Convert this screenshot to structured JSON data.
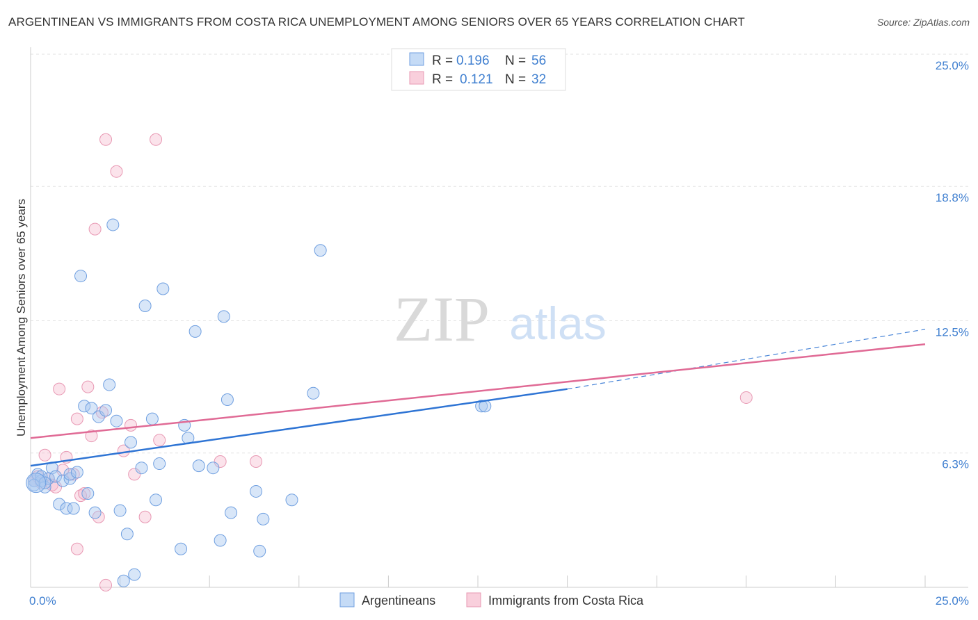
{
  "title": "ARGENTINEAN VS IMMIGRANTS FROM COSTA RICA UNEMPLOYMENT AMONG SENIORS OVER 65 YEARS CORRELATION CHART",
  "source": "Source: ZipAtlas.com",
  "watermark": {
    "zip": "ZIP",
    "atlas": "atlas"
  },
  "colors": {
    "blue": "#4a86d8",
    "blue_fill": "#a9c8f0",
    "pink": "#e8709a",
    "pink_fill": "#f5b8cc",
    "tick": "#3f7fd0"
  },
  "legend": {
    "rows": [
      {
        "r_label": "R =",
        "r_value": "0.196",
        "n_label": "N =",
        "n_value": "56"
      },
      {
        "r_label": "R =",
        "r_value": "0.121",
        "n_label": "N =",
        "n_value": "32"
      }
    ]
  },
  "chart_data": {
    "type": "scatter",
    "xlabel": "",
    "ylabel": "Unemployment Among Seniors over 65 years",
    "xlim": [
      0,
      25
    ],
    "ylim": [
      0,
      25
    ],
    "x_tick_labels": {
      "left": "0.0%",
      "right": "25.0%"
    },
    "y_ticks": [
      {
        "value": 6.3,
        "label": "6.3%"
      },
      {
        "value": 12.5,
        "label": "12.5%"
      },
      {
        "value": 18.8,
        "label": "18.8%"
      },
      {
        "value": 25.0,
        "label": "25.0%"
      }
    ],
    "series": [
      {
        "name": "Argentineans",
        "color": "blue",
        "points": [
          [
            0.1,
            5.0
          ],
          [
            0.1,
            4.8
          ],
          [
            0.2,
            5.3
          ],
          [
            0.3,
            5.0
          ],
          [
            0.4,
            4.7
          ],
          [
            0.5,
            5.1
          ],
          [
            0.6,
            5.6
          ],
          [
            0.7,
            5.2
          ],
          [
            0.8,
            3.9
          ],
          [
            0.9,
            5.0
          ],
          [
            1.0,
            3.7
          ],
          [
            1.1,
            5.1
          ],
          [
            1.1,
            5.3
          ],
          [
            1.2,
            3.7
          ],
          [
            1.3,
            5.4
          ],
          [
            1.4,
            14.6
          ],
          [
            1.5,
            8.5
          ],
          [
            1.6,
            4.4
          ],
          [
            1.7,
            8.4
          ],
          [
            1.8,
            3.5
          ],
          [
            1.9,
            8.0
          ],
          [
            2.1,
            8.3
          ],
          [
            2.2,
            9.5
          ],
          [
            2.3,
            17.0
          ],
          [
            2.4,
            7.8
          ],
          [
            2.5,
            3.6
          ],
          [
            2.6,
            0.3
          ],
          [
            2.7,
            2.5
          ],
          [
            2.8,
            6.8
          ],
          [
            2.9,
            0.6
          ],
          [
            3.1,
            5.6
          ],
          [
            3.2,
            13.2
          ],
          [
            3.4,
            7.9
          ],
          [
            3.5,
            4.1
          ],
          [
            3.6,
            5.8
          ],
          [
            3.7,
            14.0
          ],
          [
            4.2,
            1.8
          ],
          [
            4.3,
            7.6
          ],
          [
            4.4,
            7.0
          ],
          [
            4.6,
            12.0
          ],
          [
            4.7,
            5.7
          ],
          [
            5.1,
            5.6
          ],
          [
            5.3,
            2.2
          ],
          [
            5.4,
            12.7
          ],
          [
            5.5,
            8.8
          ],
          [
            5.6,
            3.5
          ],
          [
            6.3,
            4.5
          ],
          [
            6.4,
            1.7
          ],
          [
            6.5,
            3.2
          ],
          [
            7.3,
            4.1
          ],
          [
            7.9,
            9.1
          ],
          [
            8.1,
            15.8
          ],
          [
            12.6,
            8.5
          ],
          [
            12.7,
            8.5
          ],
          [
            0.3,
            5.2
          ],
          [
            0.4,
            4.9
          ]
        ],
        "trendline": {
          "x_start": 0,
          "y_start": 5.7,
          "x_solid_end": 15,
          "y_solid_end": 9.3,
          "x_end": 25,
          "y_end": 12.1
        }
      },
      {
        "name": "Immigrants from Costa Rica",
        "color": "pink",
        "points": [
          [
            0.1,
            5.0
          ],
          [
            0.2,
            5.2
          ],
          [
            0.3,
            4.9
          ],
          [
            0.4,
            6.2
          ],
          [
            0.5,
            5.1
          ],
          [
            0.6,
            4.8
          ],
          [
            0.7,
            4.7
          ],
          [
            0.8,
            9.3
          ],
          [
            0.9,
            5.5
          ],
          [
            1.0,
            6.1
          ],
          [
            1.2,
            5.3
          ],
          [
            1.3,
            1.8
          ],
          [
            1.3,
            7.9
          ],
          [
            1.4,
            4.3
          ],
          [
            1.5,
            4.4
          ],
          [
            1.6,
            9.4
          ],
          [
            1.7,
            7.1
          ],
          [
            1.8,
            16.8
          ],
          [
            1.9,
            3.3
          ],
          [
            2.0,
            8.2
          ],
          [
            2.1,
            21.0
          ],
          [
            2.1,
            0.1
          ],
          [
            2.4,
            19.5
          ],
          [
            2.6,
            6.4
          ],
          [
            2.8,
            7.6
          ],
          [
            2.9,
            5.3
          ],
          [
            3.2,
            3.3
          ],
          [
            3.5,
            21.0
          ],
          [
            3.6,
            6.9
          ],
          [
            5.3,
            5.9
          ],
          [
            6.3,
            5.9
          ],
          [
            20.0,
            8.9
          ]
        ],
        "trendline": {
          "x_start": 0,
          "y_start": 7.0,
          "x_end": 25,
          "y_end": 11.4
        }
      }
    ]
  }
}
